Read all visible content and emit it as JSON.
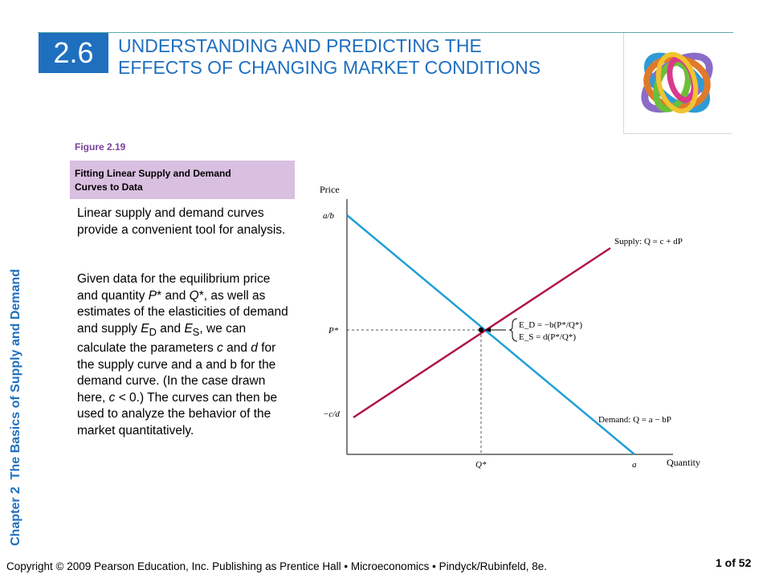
{
  "header": {
    "section_number": "2.6",
    "title_line1": "UNDERSTANDING AND PREDICTING THE",
    "title_line2": "EFFECTS OF CHANGING MARKET CONDITIONS"
  },
  "sidebar": {
    "chapter": "Chapter 2",
    "chapter_title": "The Basics of Supply and Demand"
  },
  "figure": {
    "number": "Figure 2.19",
    "title_line1": "Fitting Linear Supply and Demand",
    "title_line2": "Curves to Data"
  },
  "text": {
    "p1": "Linear supply and demand curves provide a convenient tool for analysis.",
    "p2_html": "Given data for the equilibrium price and quantity <i>P</i>* and <i>Q</i>*, as well as estimates of the elasticities of demand and supply <i>E</i><sub>D</sub> and <i>E</i><sub>S</sub>, we can calculate the parameters <i>c</i> and <i>d</i> for the supply curve and a and b for the demand curve. (In the case drawn here, <i>c</i> &lt; 0.) The curves can then be used to analyze the behavior of the market quantitatively."
  },
  "diagram": {
    "y_axis_label": "Price",
    "x_axis_label": "Quantity",
    "y_intercept_demand": "a/b",
    "y_equilibrium": "P*",
    "y_intercept_supply": "−c/d",
    "x_equilibrium": "Q*",
    "x_intercept_demand": "a",
    "supply_label": "Supply: Q = c + dP",
    "demand_label": "Demand: Q = a − bP",
    "ed_label": "E_D = −b(P*/Q*)",
    "es_label": "E_S = d(P*/Q*)",
    "colors": {
      "supply": "#b0154a",
      "demand": "#1ea0d8",
      "accent": "#1f6fbf"
    }
  },
  "footer": {
    "copyright": "Copyright © 2009 Pearson Education, Inc. Publishing as Prentice Hall  •  Microeconomics  •  Pindyck/Rubinfeld, 8e.",
    "page": "1 of 52"
  }
}
